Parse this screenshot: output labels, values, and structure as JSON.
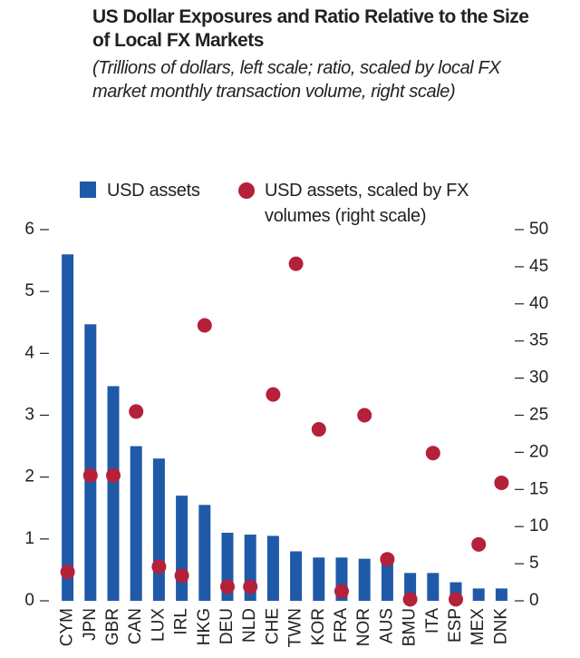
{
  "chart_data": {
    "type": "bar",
    "title": "US Dollar Exposures and Ratio Relative to the Size of Local FX Markets",
    "subtitle": "(Trillions of dollars, left scale; ratio, scaled by local FX market monthly transaction volume, right scale)",
    "categories": [
      "CYM",
      "JPN",
      "GBR",
      "CAN",
      "LUX",
      "IRL",
      "HKG",
      "DEU",
      "NLD",
      "CHE",
      "TWN",
      "KOR",
      "FRA",
      "NOR",
      "AUS",
      "BMU",
      "ITA",
      "ESP",
      "MEX",
      "DNK"
    ],
    "series": [
      {
        "name": "USD assets",
        "color": "#1f5aa8",
        "type": "bar",
        "values": [
          5.6,
          4.47,
          3.47,
          2.5,
          2.3,
          1.7,
          1.55,
          1.1,
          1.07,
          1.05,
          0.8,
          0.7,
          0.7,
          0.68,
          0.65,
          0.45,
          0.45,
          0.3,
          0.2,
          0.2
        ]
      },
      {
        "name": "USD assets, scaled by FX volumes (right scale)",
        "color": "#b5203a",
        "type": "scatter",
        "axis": "y2",
        "values": [
          3.9,
          16.9,
          16.9,
          25.5,
          4.6,
          3.4,
          37.1,
          1.9,
          1.9,
          27.8,
          45.4,
          23.1,
          1.3,
          25.0,
          5.6,
          0.2,
          19.9,
          0.2,
          7.6,
          15.9
        ]
      }
    ],
    "ylim": [
      0,
      6
    ],
    "yticks": [
      0,
      1,
      2,
      3,
      4,
      5,
      6
    ],
    "y2lim": [
      0,
      50
    ],
    "y2ticks": [
      0,
      5,
      10,
      15,
      20,
      25,
      30,
      35,
      40,
      45,
      50
    ]
  }
}
